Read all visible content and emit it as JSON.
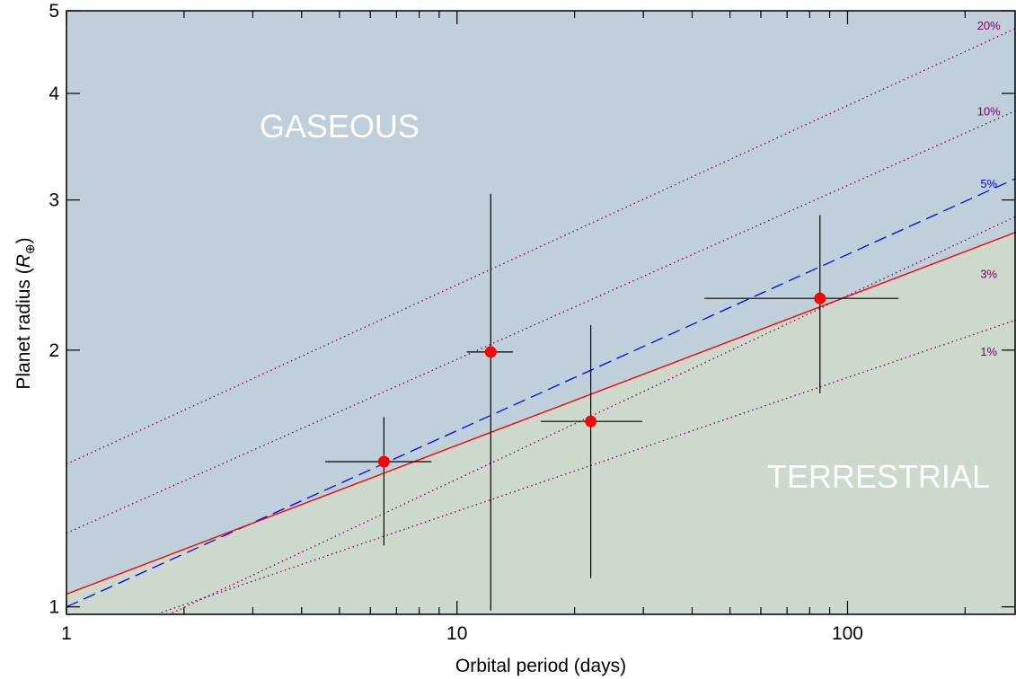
{
  "chart_data": {
    "type": "scatter",
    "title": "",
    "xlabel": "Orbital period (days)",
    "ylabel_main": "Planet radius (",
    "ylabel_symbol": "R",
    "ylabel_sub": "⊕",
    "ylabel_close": ")",
    "xscale": "log",
    "yscale": "log",
    "xlim": [
      1,
      270
    ],
    "ylim": [
      0.98,
      5
    ],
    "xticks": [
      {
        "value": 1,
        "label": "1"
      },
      {
        "value": 10,
        "label": "10"
      },
      {
        "value": 100,
        "label": "100"
      }
    ],
    "yticks": [
      {
        "value": 1,
        "label": "1"
      },
      {
        "value": 2,
        "label": "2"
      },
      {
        "value": 3,
        "label": "3"
      },
      {
        "value": 4,
        "label": "4"
      },
      {
        "value": 5,
        "label": "5"
      }
    ],
    "regions": [
      {
        "name": "gaseous",
        "label": "GASEOUS",
        "color": "#c0d0da",
        "label_at": [
          5.0,
          3.55
        ]
      },
      {
        "name": "terrestrial",
        "label": "TERRESTRIAL",
        "color": "#ccd9cc",
        "label_at": [
          120,
          1.38
        ]
      }
    ],
    "boundary": {
      "x": [
        1,
        270
      ],
      "y": [
        1.035,
        2.75
      ],
      "color": "#ff0000"
    },
    "reference_lines": [
      {
        "label": "20%",
        "x": [
          1,
          270
        ],
        "y": [
          1.47,
          4.77
        ],
        "color": "#800060",
        "style": "dotted",
        "label_at": [
          230,
          4.75
        ]
      },
      {
        "label": "10%",
        "x": [
          1,
          270
        ],
        "y": [
          1.22,
          3.82
        ],
        "color": "#800060",
        "style": "dotted",
        "label_at": [
          230,
          3.77
        ]
      },
      {
        "label": "5%",
        "x": [
          1,
          270
        ],
        "y": [
          1.0,
          3.18
        ],
        "color": "#0000ff",
        "style": "dashed",
        "label_at": [
          230,
          3.1
        ]
      },
      {
        "label": "3%",
        "x": [
          1,
          270
        ],
        "y": [
          0.86,
          2.87
        ],
        "color": "#800060",
        "style": "dotted",
        "label_at": [
          230,
          2.43
        ]
      },
      {
        "label": "1%",
        "x": [
          1.75,
          270
        ],
        "y": [
          0.985,
          2.17
        ],
        "color": "#800060",
        "style": "dotted",
        "label_at": [
          230,
          1.97
        ]
      }
    ],
    "points": [
      {
        "x": 6.5,
        "y": 1.48,
        "xerr": [
          4.6,
          8.6
        ],
        "yerr": [
          1.18,
          1.67
        ],
        "color": "#ff0000"
      },
      {
        "x": 12.2,
        "y": 1.99,
        "xerr": [
          10.6,
          13.9
        ],
        "yerr": [
          0.99,
          3.05
        ],
        "color": "#ff0000"
      },
      {
        "x": 22.0,
        "y": 1.65,
        "xerr": [
          16.4,
          29.8
        ],
        "yerr": [
          1.08,
          2.14
        ],
        "color": "#ff0000"
      },
      {
        "x": 85.0,
        "y": 2.3,
        "xerr": [
          43.0,
          135.0
        ],
        "yerr": [
          1.78,
          2.88
        ],
        "color": "#ff0000"
      }
    ]
  }
}
